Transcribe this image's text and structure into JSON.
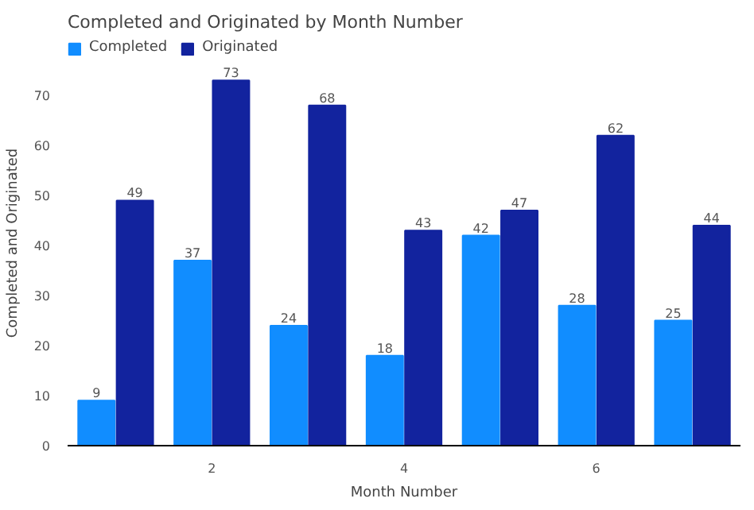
{
  "chart_data": {
    "type": "bar",
    "title": "Completed and Originated by Month Number",
    "xlabel": "Month Number",
    "ylabel": "Completed and Originated",
    "x": [
      1,
      2,
      3,
      4,
      5,
      6,
      7
    ],
    "series": [
      {
        "name": "Completed",
        "color": "#118dff",
        "values": [
          9,
          37,
          24,
          18,
          42,
          28,
          25
        ]
      },
      {
        "name": "Originated",
        "color": "#12239e",
        "values": [
          49,
          73,
          68,
          43,
          47,
          62,
          44
        ]
      }
    ],
    "xlim": [
      0.5,
      7.5
    ],
    "xticks": [
      2,
      4,
      6
    ],
    "ylim": [
      0,
      81
    ],
    "yticks": [
      0,
      10,
      20,
      30,
      40,
      50,
      60,
      70
    ],
    "data_labels": true,
    "legend": "top left",
    "grid": false
  }
}
